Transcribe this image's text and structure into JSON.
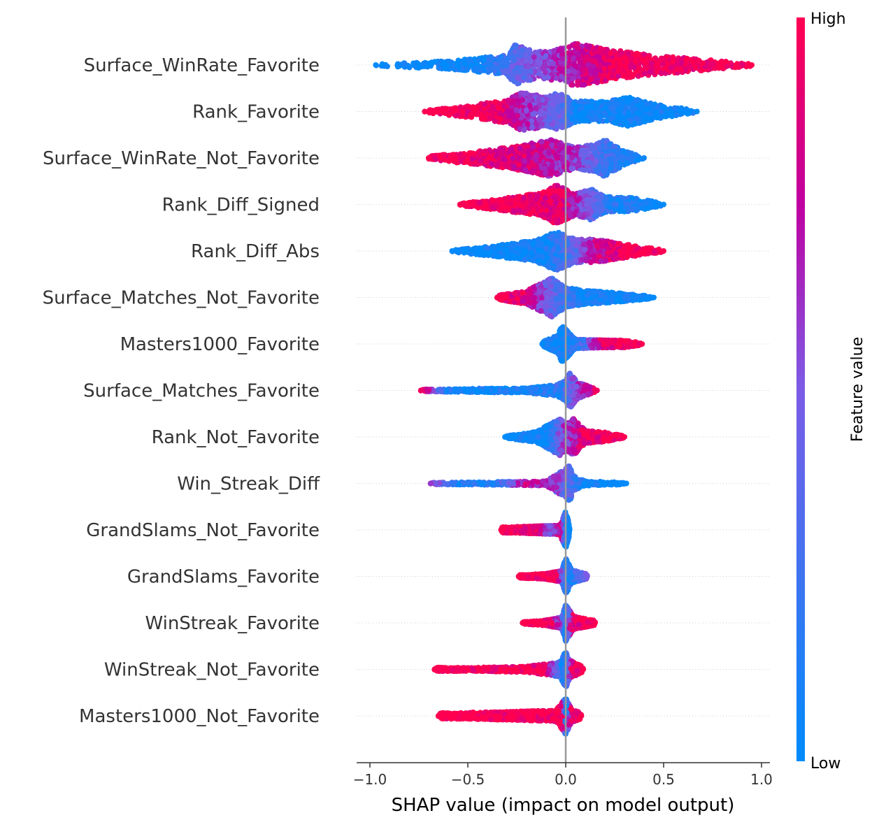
{
  "chart_data": {
    "type": "scatter",
    "subtype": "shap-beeswarm",
    "xlabel": "SHAP value (impact on model output)",
    "xlim": [
      -1.06,
      1.06
    ],
    "x_ticks": [
      {
        "value": -1.0,
        "label": "−1.0"
      },
      {
        "value": -0.5,
        "label": "−0.5"
      },
      {
        "value": 0.0,
        "label": "0.0"
      },
      {
        "value": 0.5,
        "label": "0.5"
      },
      {
        "value": 1.0,
        "label": "1.0"
      }
    ],
    "colorbar": {
      "label": "Feature value",
      "high_label": "High",
      "low_label": "Low",
      "high_color": "#ff0051",
      "mid_color": "#c000a0",
      "low_color": "#008bfb"
    },
    "zero_line_color": "#999999",
    "features": [
      {
        "name": "Surface_WinRate_Favorite",
        "min": -0.97,
        "max": 0.95,
        "width": 1.0,
        "profile": [
          [
            -0.97,
            0.04
          ],
          [
            -0.6,
            0.2
          ],
          [
            -0.3,
            0.45
          ],
          [
            -0.26,
            0.95
          ],
          [
            -0.15,
            0.6
          ],
          [
            0.0,
            0.8
          ],
          [
            0.05,
            1.0
          ],
          [
            0.2,
            0.75
          ],
          [
            0.4,
            0.5
          ],
          [
            0.65,
            0.3
          ],
          [
            0.95,
            0.05
          ]
        ],
        "color_stops": [
          [
            -0.97,
            0.0
          ],
          [
            -0.45,
            0.02
          ],
          [
            -0.3,
            0.3
          ],
          [
            -0.1,
            0.6
          ],
          [
            0.1,
            0.8
          ],
          [
            0.3,
            0.97
          ],
          [
            0.95,
            1.0
          ]
        ]
      },
      {
        "name": "Rank_Favorite",
        "min": -0.72,
        "max": 0.67,
        "width": 0.9,
        "profile": [
          [
            -0.72,
            0.05
          ],
          [
            -0.5,
            0.3
          ],
          [
            -0.3,
            0.6
          ],
          [
            -0.22,
            1.0
          ],
          [
            -0.1,
            0.75
          ],
          [
            -0.04,
            0.95
          ],
          [
            0.05,
            0.55
          ],
          [
            0.2,
            0.5
          ],
          [
            0.32,
            0.75
          ],
          [
            0.45,
            0.4
          ],
          [
            0.67,
            0.05
          ]
        ],
        "color_stops": [
          [
            -0.72,
            1.0
          ],
          [
            -0.35,
            0.95
          ],
          [
            -0.15,
            0.55
          ],
          [
            -0.02,
            0.35
          ],
          [
            0.05,
            0.05
          ],
          [
            0.67,
            0.0
          ]
        ]
      },
      {
        "name": "Surface_WinRate_Not_Favorite",
        "min": -0.7,
        "max": 0.4,
        "width": 0.9,
        "profile": [
          [
            -0.7,
            0.1
          ],
          [
            -0.45,
            0.35
          ],
          [
            -0.25,
            0.6
          ],
          [
            -0.08,
            0.95
          ],
          [
            0.05,
            0.55
          ],
          [
            0.15,
            0.7
          ],
          [
            0.2,
            0.95
          ],
          [
            0.3,
            0.35
          ],
          [
            0.4,
            0.05
          ]
        ],
        "color_stops": [
          [
            -0.7,
            1.0
          ],
          [
            -0.3,
            0.9
          ],
          [
            -0.05,
            0.7
          ],
          [
            0.1,
            0.5
          ],
          [
            0.2,
            0.25
          ],
          [
            0.4,
            0.05
          ]
        ]
      },
      {
        "name": "Rank_Diff_Signed",
        "min": -0.54,
        "max": 0.5,
        "width": 0.9,
        "profile": [
          [
            -0.54,
            0.05
          ],
          [
            -0.3,
            0.35
          ],
          [
            -0.12,
            0.6
          ],
          [
            -0.05,
            1.0
          ],
          [
            0.05,
            0.55
          ],
          [
            0.13,
            0.8
          ],
          [
            0.2,
            0.4
          ],
          [
            0.35,
            0.35
          ],
          [
            0.5,
            0.05
          ]
        ],
        "color_stops": [
          [
            -0.54,
            1.0
          ],
          [
            -0.15,
            0.95
          ],
          [
            0.0,
            0.85
          ],
          [
            0.1,
            0.5
          ],
          [
            0.2,
            0.15
          ],
          [
            0.5,
            0.0
          ]
        ]
      },
      {
        "name": "Rank_Diff_Abs",
        "min": -0.58,
        "max": 0.5,
        "width": 0.9,
        "profile": [
          [
            -0.58,
            0.05
          ],
          [
            -0.35,
            0.3
          ],
          [
            -0.15,
            0.55
          ],
          [
            -0.05,
            1.0
          ],
          [
            0.05,
            0.6
          ],
          [
            0.15,
            0.6
          ],
          [
            0.3,
            0.35
          ],
          [
            0.5,
            0.05
          ]
        ],
        "color_stops": [
          [
            -0.58,
            0.0
          ],
          [
            -0.1,
            0.05
          ],
          [
            0.05,
            0.4
          ],
          [
            0.15,
            0.75
          ],
          [
            0.3,
            0.95
          ],
          [
            0.5,
            1.0
          ]
        ]
      },
      {
        "name": "Surface_Matches_Not_Favorite",
        "min": -0.35,
        "max": 0.45,
        "width": 0.9,
        "profile": [
          [
            -0.35,
            0.1
          ],
          [
            -0.2,
            0.35
          ],
          [
            -0.07,
            1.0
          ],
          [
            0.0,
            0.5
          ],
          [
            0.1,
            0.35
          ],
          [
            0.25,
            0.25
          ],
          [
            0.45,
            0.05
          ]
        ],
        "color_stops": [
          [
            -0.35,
            1.0
          ],
          [
            -0.2,
            0.85
          ],
          [
            -0.08,
            0.45
          ],
          [
            0.0,
            0.2
          ],
          [
            0.1,
            0.03
          ],
          [
            0.45,
            0.0
          ]
        ]
      },
      {
        "name": "Masters1000_Favorite",
        "min": -0.12,
        "max": 0.39,
        "width": 0.85,
        "profile": [
          [
            -0.12,
            0.1
          ],
          [
            -0.04,
            0.5
          ],
          [
            -0.02,
            1.0
          ],
          [
            0.02,
            0.6
          ],
          [
            0.05,
            0.25
          ],
          [
            0.2,
            0.2
          ],
          [
            0.3,
            0.2
          ],
          [
            0.39,
            0.05
          ]
        ],
        "color_stops": [
          [
            -0.12,
            0.0
          ],
          [
            0.0,
            0.05
          ],
          [
            0.1,
            0.35
          ],
          [
            0.18,
            0.85
          ],
          [
            0.39,
            1.0
          ]
        ]
      },
      {
        "name": "Surface_Matches_Favorite",
        "min": -0.74,
        "max": 0.16,
        "width": 0.85,
        "profile": [
          [
            -0.74,
            0.05
          ],
          [
            -0.5,
            0.1
          ],
          [
            -0.2,
            0.12
          ],
          [
            -0.05,
            0.3
          ],
          [
            0.0,
            0.55
          ],
          [
            0.02,
            1.0
          ],
          [
            0.06,
            0.45
          ],
          [
            0.16,
            0.05
          ]
        ],
        "color_stops": [
          [
            -0.74,
            0.95
          ],
          [
            -0.6,
            0.05
          ],
          [
            -0.2,
            0.03
          ],
          [
            -0.02,
            0.2
          ],
          [
            0.05,
            0.55
          ],
          [
            0.16,
            0.95
          ]
        ]
      },
      {
        "name": "Rank_Not_Favorite",
        "min": -0.31,
        "max": 0.3,
        "width": 0.85,
        "profile": [
          [
            -0.31,
            0.05
          ],
          [
            -0.15,
            0.3
          ],
          [
            -0.03,
            1.0
          ],
          [
            0.0,
            0.7
          ],
          [
            0.04,
            1.0
          ],
          [
            0.1,
            0.35
          ],
          [
            0.2,
            0.25
          ],
          [
            0.3,
            0.05
          ]
        ],
        "color_stops": [
          [
            -0.31,
            0.0
          ],
          [
            -0.1,
            0.05
          ],
          [
            -0.02,
            0.55
          ],
          [
            0.04,
            0.7
          ],
          [
            0.1,
            0.9
          ],
          [
            0.3,
            1.0
          ]
        ]
      },
      {
        "name": "Win_Streak_Diff",
        "min": -0.69,
        "max": 0.31,
        "width": 0.85,
        "profile": [
          [
            -0.69,
            0.05
          ],
          [
            -0.4,
            0.08
          ],
          [
            -0.1,
            0.12
          ],
          [
            0.0,
            0.8
          ],
          [
            0.02,
            1.0
          ],
          [
            0.04,
            0.4
          ],
          [
            0.1,
            0.12
          ],
          [
            0.31,
            0.05
          ]
        ],
        "color_stops": [
          [
            -0.69,
            0.6
          ],
          [
            -0.55,
            0.05
          ],
          [
            -0.35,
            0.2
          ],
          [
            -0.2,
            0.75
          ],
          [
            -0.05,
            0.55
          ],
          [
            0.02,
            0.3
          ],
          [
            0.1,
            0.02
          ],
          [
            0.31,
            0.0
          ]
        ]
      },
      {
        "name": "GrandSlams_Not_Favorite",
        "min": -0.33,
        "max": 0.02,
        "width": 0.85,
        "profile": [
          [
            -0.33,
            0.15
          ],
          [
            -0.15,
            0.2
          ],
          [
            -0.03,
            0.25
          ],
          [
            0.0,
            1.0
          ],
          [
            0.02,
            0.25
          ]
        ],
        "color_stops": [
          [
            -0.33,
            1.0
          ],
          [
            -0.15,
            0.92
          ],
          [
            -0.08,
            0.55
          ],
          [
            -0.02,
            0.85
          ],
          [
            0.0,
            0.02
          ],
          [
            0.02,
            0.0
          ]
        ]
      },
      {
        "name": "GrandSlams_Favorite",
        "min": -0.24,
        "max": 0.11,
        "width": 0.85,
        "profile": [
          [
            -0.24,
            0.08
          ],
          [
            -0.1,
            0.15
          ],
          [
            -0.02,
            0.3
          ],
          [
            0.0,
            1.0
          ],
          [
            0.03,
            0.35
          ],
          [
            0.11,
            0.12
          ]
        ],
        "color_stops": [
          [
            -0.24,
            1.0
          ],
          [
            -0.05,
            0.95
          ],
          [
            0.0,
            0.1
          ],
          [
            0.03,
            0.15
          ],
          [
            0.11,
            0.5
          ]
        ]
      },
      {
        "name": "WinStreak_Favorite",
        "min": -0.22,
        "max": 0.15,
        "width": 0.85,
        "profile": [
          [
            -0.22,
            0.05
          ],
          [
            -0.1,
            0.15
          ],
          [
            -0.02,
            0.3
          ],
          [
            0.0,
            1.0
          ],
          [
            0.04,
            0.35
          ],
          [
            0.15,
            0.12
          ]
        ],
        "color_stops": [
          [
            -0.22,
            1.0
          ],
          [
            -0.08,
            0.95
          ],
          [
            -0.03,
            0.55
          ],
          [
            0.0,
            0.1
          ],
          [
            0.03,
            0.9
          ],
          [
            0.15,
            1.0
          ]
        ]
      },
      {
        "name": "WinStreak_Not_Favorite",
        "min": -0.67,
        "max": 0.09,
        "width": 0.85,
        "profile": [
          [
            -0.67,
            0.1
          ],
          [
            -0.45,
            0.1
          ],
          [
            -0.2,
            0.15
          ],
          [
            -0.03,
            0.4
          ],
          [
            0.0,
            1.0
          ],
          [
            0.02,
            0.5
          ],
          [
            0.09,
            0.12
          ]
        ],
        "color_stops": [
          [
            -0.67,
            1.0
          ],
          [
            -0.1,
            0.95
          ],
          [
            -0.03,
            0.1
          ],
          [
            0.0,
            0.2
          ],
          [
            0.03,
            0.9
          ],
          [
            0.09,
            1.0
          ]
        ]
      },
      {
        "name": "Masters1000_Not_Favorite",
        "min": -0.65,
        "max": 0.08,
        "width": 0.85,
        "profile": [
          [
            -0.65,
            0.15
          ],
          [
            -0.3,
            0.22
          ],
          [
            -0.05,
            0.3
          ],
          [
            0.0,
            1.0
          ],
          [
            0.03,
            0.35
          ],
          [
            0.08,
            0.15
          ]
        ],
        "color_stops": [
          [
            -0.65,
            1.0
          ],
          [
            -0.02,
            1.0
          ],
          [
            0.0,
            0.0
          ],
          [
            0.02,
            0.9
          ],
          [
            0.08,
            1.0
          ]
        ]
      }
    ]
  }
}
